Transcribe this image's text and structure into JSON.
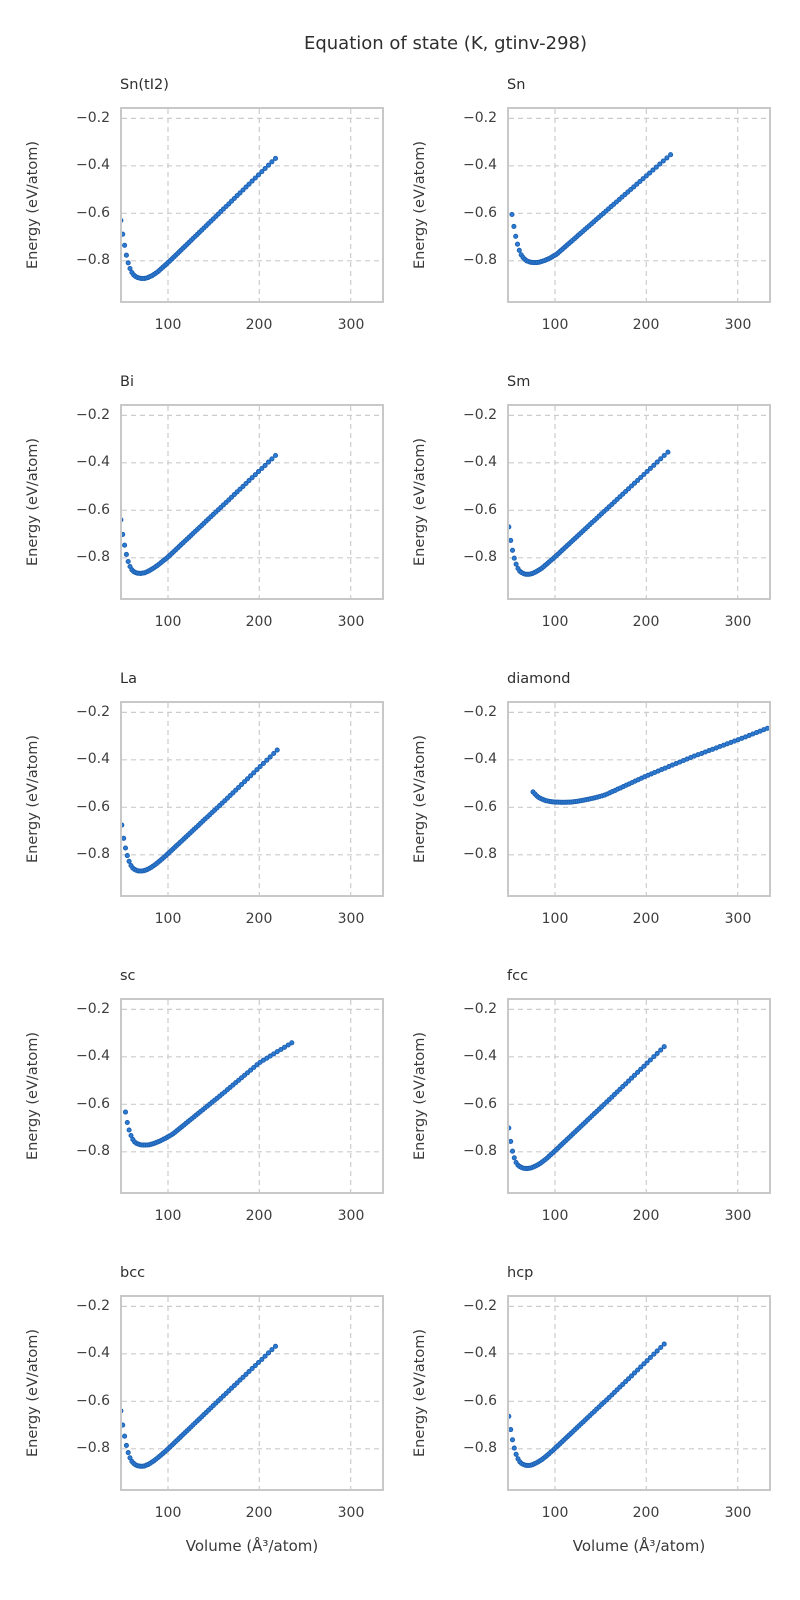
{
  "figure": {
    "title": "Equation of state (K, gtinv-298)"
  },
  "axes": {
    "xlabel": "Volume (Å³/atom)",
    "ylabel": "Energy (eV/atom)",
    "xlim": [
      47.5,
      336.5
    ],
    "ylim": [
      -0.978,
      -0.152
    ],
    "xticks": [
      100,
      200,
      300
    ],
    "yticks": [
      -0.2,
      -0.4,
      -0.6,
      -0.8
    ],
    "xtick_labels": [
      "100",
      "200",
      "300"
    ],
    "ytick_labels": [
      "−0.2",
      "−0.4",
      "−0.6",
      "−0.8"
    ],
    "grid": {
      "style": "dashed",
      "color": "#cccccc"
    },
    "frame_color": "#c8c8c8"
  },
  "style": {
    "dot_fill": "#2e7bd2",
    "dot_edge": "#1c5fb0",
    "dot_radius": 2.1
  },
  "chart_data": [
    {
      "type": "scatter",
      "title": "Sn(tI2)",
      "points": [
        [
          48.5,
          -0.63
        ],
        [
          50,
          -0.676
        ],
        [
          52,
          -0.724
        ],
        [
          54,
          -0.768
        ],
        [
          56,
          -0.802
        ],
        [
          58,
          -0.828
        ],
        [
          60,
          -0.847
        ],
        [
          63,
          -0.862
        ],
        [
          66,
          -0.87
        ],
        [
          70,
          -0.874
        ],
        [
          74,
          -0.875
        ],
        [
          78,
          -0.871
        ],
        [
          83,
          -0.862
        ],
        [
          88,
          -0.849
        ],
        [
          94,
          -0.829
        ],
        [
          102,
          -0.801
        ],
        [
          160,
          -0.585
        ],
        [
          221,
          -0.356
        ]
      ]
    },
    {
      "type": "scatter",
      "title": "Sn",
      "points": [
        [
          53,
          -0.605
        ],
        [
          55,
          -0.655
        ],
        [
          57,
          -0.697
        ],
        [
          59,
          -0.73
        ],
        [
          61,
          -0.756
        ],
        [
          63,
          -0.775
        ],
        [
          66,
          -0.791
        ],
        [
          69,
          -0.8
        ],
        [
          73,
          -0.806
        ],
        [
          78,
          -0.808
        ],
        [
          83,
          -0.806
        ],
        [
          88,
          -0.8
        ],
        [
          94,
          -0.79
        ],
        [
          102,
          -0.772
        ],
        [
          165,
          -0.56
        ],
        [
          229,
          -0.345
        ]
      ]
    },
    {
      "type": "scatter",
      "title": "Bi",
      "points": [
        [
          48.5,
          -0.64
        ],
        [
          50,
          -0.69
        ],
        [
          52,
          -0.737
        ],
        [
          54,
          -0.778
        ],
        [
          56,
          -0.81
        ],
        [
          58,
          -0.833
        ],
        [
          60,
          -0.849
        ],
        [
          63,
          -0.86
        ],
        [
          66,
          -0.865
        ],
        [
          70,
          -0.866
        ],
        [
          74,
          -0.864
        ],
        [
          79,
          -0.856
        ],
        [
          85,
          -0.842
        ],
        [
          92,
          -0.822
        ],
        [
          100,
          -0.797
        ],
        [
          160,
          -0.58
        ],
        [
          221,
          -0.357
        ]
      ]
    },
    {
      "type": "scatter",
      "title": "Sm",
      "points": [
        [
          49.5,
          -0.67
        ],
        [
          51,
          -0.716
        ],
        [
          53,
          -0.76
        ],
        [
          55,
          -0.795
        ],
        [
          57,
          -0.822
        ],
        [
          59,
          -0.842
        ],
        [
          61,
          -0.855
        ],
        [
          64,
          -0.864
        ],
        [
          67,
          -0.869
        ],
        [
          71,
          -0.87
        ],
        [
          75,
          -0.867
        ],
        [
          80,
          -0.858
        ],
        [
          86,
          -0.843
        ],
        [
          93,
          -0.82
        ],
        [
          101,
          -0.793
        ],
        [
          163,
          -0.572
        ],
        [
          225,
          -0.35
        ]
      ]
    },
    {
      "type": "scatter",
      "title": "La",
      "points": [
        [
          49.5,
          -0.675
        ],
        [
          51,
          -0.72
        ],
        [
          53,
          -0.763
        ],
        [
          55,
          -0.797
        ],
        [
          57,
          -0.823
        ],
        [
          59,
          -0.842
        ],
        [
          61,
          -0.855
        ],
        [
          64,
          -0.863
        ],
        [
          67,
          -0.868
        ],
        [
          71,
          -0.869
        ],
        [
          75,
          -0.866
        ],
        [
          80,
          -0.857
        ],
        [
          86,
          -0.842
        ],
        [
          93,
          -0.82
        ],
        [
          101,
          -0.792
        ],
        [
          162,
          -0.573
        ],
        [
          222,
          -0.35
        ]
      ]
    },
    {
      "type": "scatter",
      "title": "diamond",
      "points": [
        [
          76,
          -0.535
        ],
        [
          79,
          -0.548
        ],
        [
          82,
          -0.558
        ],
        [
          86,
          -0.566
        ],
        [
          90,
          -0.572
        ],
        [
          95,
          -0.576
        ],
        [
          100,
          -0.578
        ],
        [
          106,
          -0.579
        ],
        [
          112,
          -0.579
        ],
        [
          118,
          -0.578
        ],
        [
          124,
          -0.575
        ],
        [
          130,
          -0.571
        ],
        [
          138,
          -0.565
        ],
        [
          146,
          -0.558
        ],
        [
          155,
          -0.548
        ],
        [
          200,
          -0.468
        ],
        [
          250,
          -0.388
        ],
        [
          300,
          -0.316
        ],
        [
          336,
          -0.262
        ]
      ]
    },
    {
      "type": "scatter",
      "title": "sc",
      "points": [
        [
          53.5,
          -0.633
        ],
        [
          55,
          -0.668
        ],
        [
          57,
          -0.702
        ],
        [
          59,
          -0.727
        ],
        [
          61,
          -0.745
        ],
        [
          63,
          -0.757
        ],
        [
          66,
          -0.766
        ],
        [
          70,
          -0.771
        ],
        [
          74,
          -0.772
        ],
        [
          79,
          -0.771
        ],
        [
          84,
          -0.766
        ],
        [
          90,
          -0.757
        ],
        [
          97,
          -0.744
        ],
        [
          105,
          -0.726
        ],
        [
          160,
          -0.555
        ],
        [
          200,
          -0.425
        ],
        [
          238,
          -0.335
        ]
      ]
    },
    {
      "type": "scatter",
      "title": "fcc",
      "points": [
        [
          49.5,
          -0.7
        ],
        [
          51,
          -0.745
        ],
        [
          53,
          -0.79
        ],
        [
          55,
          -0.82
        ],
        [
          57,
          -0.842
        ],
        [
          59,
          -0.855
        ],
        [
          62,
          -0.864
        ],
        [
          65,
          -0.869
        ],
        [
          69,
          -0.871
        ],
        [
          73,
          -0.869
        ],
        [
          78,
          -0.862
        ],
        [
          84,
          -0.849
        ],
        [
          91,
          -0.828
        ],
        [
          99,
          -0.8
        ],
        [
          160,
          -0.578
        ],
        [
          221,
          -0.352
        ]
      ]
    },
    {
      "type": "scatter",
      "title": "bcc",
      "points": [
        [
          48.5,
          -0.64
        ],
        [
          50,
          -0.688
        ],
        [
          52,
          -0.737
        ],
        [
          54,
          -0.778
        ],
        [
          56,
          -0.81
        ],
        [
          58,
          -0.834
        ],
        [
          60,
          -0.851
        ],
        [
          63,
          -0.864
        ],
        [
          66,
          -0.871
        ],
        [
          70,
          -0.874
        ],
        [
          74,
          -0.873
        ],
        [
          79,
          -0.865
        ],
        [
          85,
          -0.85
        ],
        [
          92,
          -0.828
        ],
        [
          100,
          -0.801
        ],
        [
          160,
          -0.58
        ],
        [
          221,
          -0.356
        ]
      ]
    },
    {
      "type": "scatter",
      "title": "hcp",
      "points": [
        [
          49.5,
          -0.663
        ],
        [
          51,
          -0.708
        ],
        [
          53,
          -0.753
        ],
        [
          55,
          -0.79
        ],
        [
          57,
          -0.818
        ],
        [
          59,
          -0.839
        ],
        [
          61,
          -0.853
        ],
        [
          64,
          -0.864
        ],
        [
          67,
          -0.869
        ],
        [
          71,
          -0.871
        ],
        [
          75,
          -0.868
        ],
        [
          80,
          -0.859
        ],
        [
          86,
          -0.845
        ],
        [
          93,
          -0.823
        ],
        [
          101,
          -0.795
        ],
        [
          162,
          -0.574
        ],
        [
          222,
          -0.35
        ]
      ]
    }
  ]
}
